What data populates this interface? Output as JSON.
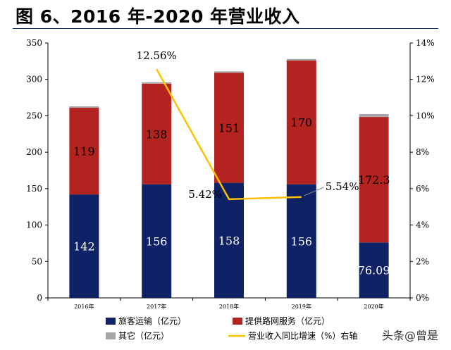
{
  "title": "图 6、2016 年-2020 年营业收入",
  "watermark": "头条@曾是",
  "chart_data": {
    "type": "bar",
    "stacked": true,
    "categories": [
      "2016年",
      "2017年",
      "2018年",
      "2019年",
      "2020年"
    ],
    "series": [
      {
        "name": "旅客运输（亿元）",
        "color": "#0f2266",
        "values": [
          142,
          156,
          158,
          156,
          76.09
        ],
        "labels": [
          "142",
          "156",
          "158",
          "156",
          "76.09"
        ]
      },
      {
        "name": "提供路网服务（亿元）",
        "color": "#b3231f",
        "values": [
          119,
          138,
          151,
          170,
          172.3
        ],
        "labels": [
          "119",
          "138",
          "151",
          "170",
          "172.3"
        ]
      },
      {
        "name": "其它（亿元）",
        "color": "#a6a6a6",
        "values": [
          2,
          2,
          2,
          2,
          4
        ]
      }
    ],
    "line": {
      "name": "营业收入同比增速（%）右轴",
      "color": "#ffc000",
      "values": [
        null,
        12.56,
        5.42,
        5.54,
        null
      ],
      "labels": [
        null,
        "12.56%",
        "5.42%",
        "5.54%",
        null
      ]
    },
    "y_left": {
      "min": 0,
      "max": 350,
      "ticks": [
        "0",
        "50",
        "100",
        "150",
        "200",
        "250",
        "300",
        "350"
      ]
    },
    "y_right": {
      "min": 0,
      "max": 14,
      "ticks": [
        "0%",
        "2%",
        "4%",
        "6%",
        "8%",
        "10%",
        "12%",
        "14%"
      ]
    },
    "grid": false,
    "legend_position": "bottom"
  }
}
